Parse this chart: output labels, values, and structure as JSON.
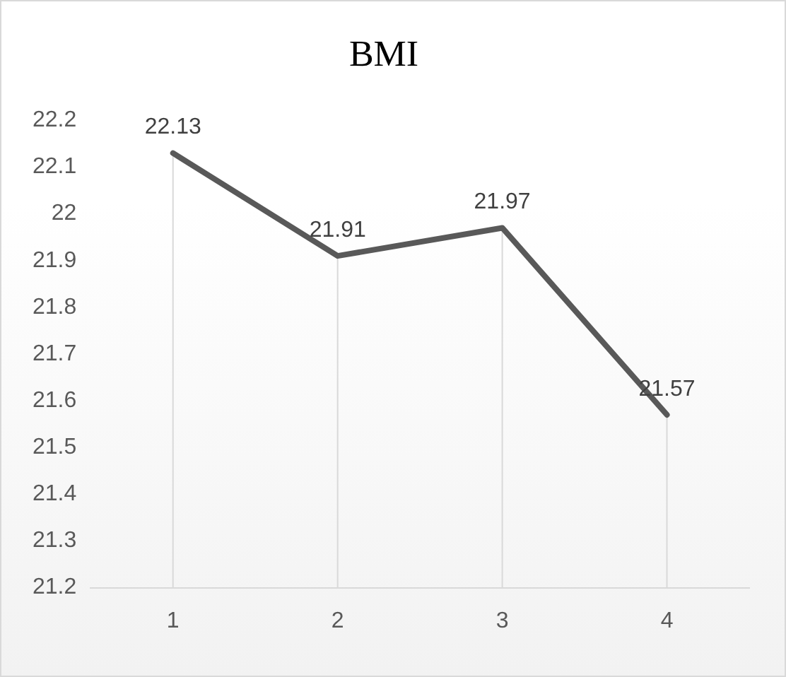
{
  "chart_data": {
    "type": "line",
    "title": "BMI",
    "categories": [
      "1",
      "2",
      "3",
      "4"
    ],
    "series": [
      {
        "color": "#595959",
        "values": [
          22.13,
          21.91,
          21.97,
          21.57
        ]
      }
    ],
    "ylim": [
      21.2,
      22.2
    ],
    "yticks": [
      21.2,
      21.3,
      21.4,
      21.5,
      21.6,
      21.7,
      21.8,
      21.9,
      22,
      22.1,
      22.2
    ],
    "grid": "x",
    "legend": false,
    "marker": "none",
    "line_style": "solid",
    "data_labels": true
  }
}
